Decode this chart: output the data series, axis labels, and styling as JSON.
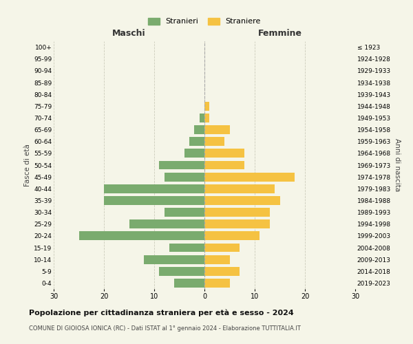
{
  "age_groups": [
    "0-4",
    "5-9",
    "10-14",
    "15-19",
    "20-24",
    "25-29",
    "30-34",
    "35-39",
    "40-44",
    "45-49",
    "50-54",
    "55-59",
    "60-64",
    "65-69",
    "70-74",
    "75-79",
    "80-84",
    "85-89",
    "90-94",
    "95-99",
    "100+"
  ],
  "birth_years": [
    "2019-2023",
    "2014-2018",
    "2009-2013",
    "2004-2008",
    "1999-2003",
    "1994-1998",
    "1989-1993",
    "1984-1988",
    "1979-1983",
    "1974-1978",
    "1969-1973",
    "1964-1968",
    "1959-1963",
    "1954-1958",
    "1949-1953",
    "1944-1948",
    "1939-1943",
    "1934-1938",
    "1929-1933",
    "1924-1928",
    "≤ 1923"
  ],
  "males": [
    6,
    9,
    12,
    7,
    25,
    15,
    8,
    20,
    20,
    8,
    9,
    4,
    3,
    2,
    1,
    0,
    0,
    0,
    0,
    0,
    0
  ],
  "females": [
    5,
    7,
    5,
    7,
    11,
    13,
    13,
    15,
    14,
    18,
    8,
    8,
    4,
    5,
    1,
    1,
    0,
    0,
    0,
    0,
    0
  ],
  "male_color": "#7aab6e",
  "female_color": "#f5c242",
  "background_color": "#f5f5e8",
  "grid_color": "#ccccbb",
  "dashed_line_color": "#aaaaaa",
  "title": "Popolazione per cittadinanza straniera per età e sesso - 2024",
  "subtitle": "COMUNE DI GIOIOSA IONICA (RC) - Dati ISTAT al 1° gennaio 2024 - Elaborazione TUTTITALIA.IT",
  "left_label": "Maschi",
  "right_label": "Femmine",
  "left_axis_label": "Fasce di età",
  "right_axis_label": "Anni di nascita",
  "legend_stranieri": "Stranieri",
  "legend_straniere": "Straniere",
  "xlim": 30,
  "fig_width": 6.0,
  "fig_height": 5.0
}
